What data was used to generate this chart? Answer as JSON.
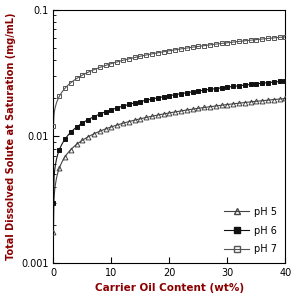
{
  "xlabel": "Carrier Oil Content (wt%)",
  "ylabel": "Total Dissolved Solute at Saturation (mg/mL)",
  "xlim": [
    0,
    40
  ],
  "ylim": [
    0.001,
    0.1
  ],
  "x_ticks": [
    0,
    10,
    20,
    30,
    40
  ],
  "series": {
    "pH5": {
      "legend_label": "pH 5",
      "color": "#444444",
      "marker": "^",
      "fillstyle": "none",
      "linewidth": 0.8,
      "markersize": 3.5,
      "S0": 0.00175,
      "a": 2.2,
      "b": 0.42
    },
    "pH6": {
      "legend_label": "pH 6",
      "color": "#111111",
      "marker": "s",
      "fillstyle": "full",
      "linewidth": 0.8,
      "markersize": 3.5,
      "S0": 0.003,
      "a": 1.6,
      "b": 0.44
    },
    "pH7": {
      "legend_label": "pH 7",
      "color": "#555555",
      "marker": "s",
      "fillstyle": "none",
      "linewidth": 0.8,
      "markersize": 3.5,
      "S0": 0.012,
      "a": 0.72,
      "b": 0.47
    }
  },
  "background_color": "#ffffff",
  "ylabel_color": "#8b0000",
  "xlabel_color": "#8b0000",
  "num_markers": 41,
  "num_line_points": 400
}
